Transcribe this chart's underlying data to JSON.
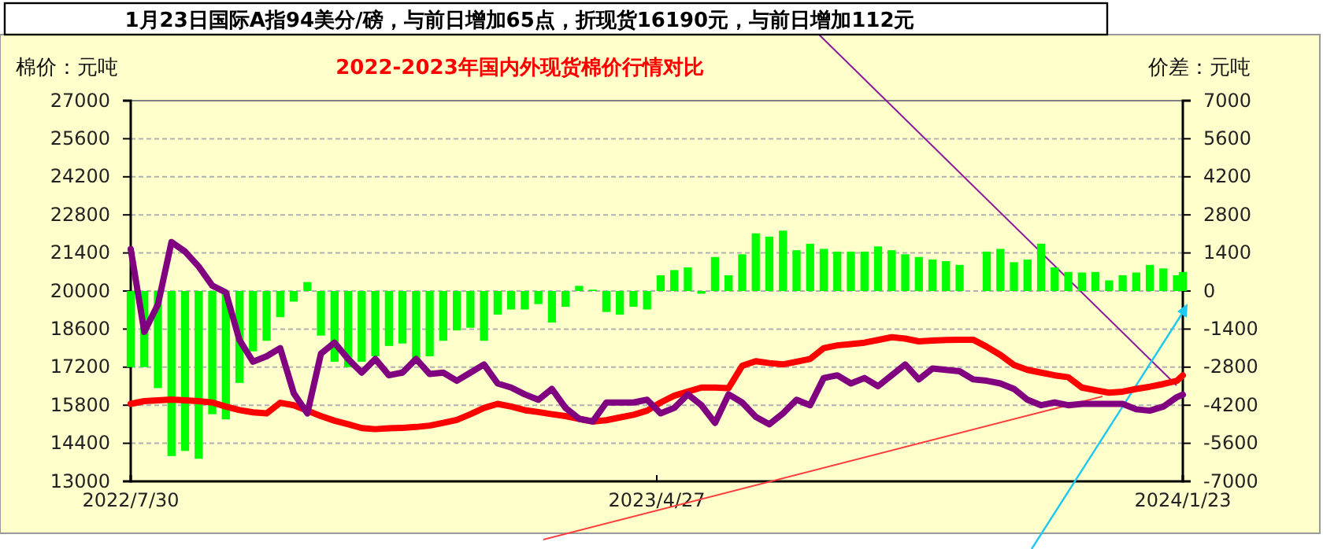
{
  "chart_data": {
    "type": "line",
    "title": "2022-2023年国内外现货棉价行情对比",
    "annotations": [
      "1月23日国际A指94美分/磅，与前日增加65点，折现货16190元，与前日增加112元"
    ],
    "ylabel": "棉价：元吨",
    "y2label": "价差：元吨",
    "x": [
      "2022-07-30",
      "2022-08-06",
      "2022-08-13",
      "2022-08-20",
      "2022-08-27",
      "2022-09-03",
      "2022-09-10",
      "2022-09-17",
      "2022-09-24",
      "2022-10-01",
      "2022-10-08",
      "2022-10-15",
      "2022-10-22",
      "2022-10-29",
      "2022-11-05",
      "2022-11-12",
      "2022-11-19",
      "2022-11-26",
      "2022-12-03",
      "2022-12-10",
      "2022-12-17",
      "2022-12-24",
      "2022-12-31",
      "2023-01-07",
      "2023-01-14",
      "2023-01-21",
      "2023-01-28",
      "2023-02-04",
      "2023-02-11",
      "2023-02-18",
      "2023-02-25",
      "2023-03-04",
      "2023-03-11",
      "2023-03-18",
      "2023-03-25",
      "2023-04-01",
      "2023-04-08",
      "2023-04-15",
      "2023-04-22",
      "2023-04-29",
      "2023-05-06",
      "2023-05-13",
      "2023-05-20",
      "2023-05-27",
      "2023-06-03",
      "2023-06-10",
      "2023-06-17",
      "2023-06-24",
      "2023-07-01",
      "2023-07-08",
      "2023-07-15",
      "2023-07-22",
      "2023-07-29",
      "2023-08-05",
      "2023-08-12",
      "2023-08-19",
      "2023-08-26",
      "2023-09-02",
      "2023-09-09",
      "2023-09-16",
      "2023-09-23",
      "2023-09-30",
      "2023-10-07",
      "2023-10-14",
      "2023-10-21",
      "2023-10-28",
      "2023-11-04",
      "2023-11-11",
      "2023-11-18",
      "2023-11-25",
      "2023-12-02",
      "2023-12-09",
      "2023-12-16",
      "2023-12-23",
      "2023-12-30",
      "2024-01-06",
      "2024-01-13",
      "2024-01-20",
      "2024-01-23"
    ],
    "xlim": [
      "2022-07-30",
      "2024-01-23"
    ],
    "xticks": [
      {
        "value": "2022-07-30",
        "label": "2022/7/30"
      },
      {
        "value": "2023-04-27",
        "label": "2023/4/27"
      },
      {
        "value": "2024-01-23",
        "label": "2024/1/23"
      }
    ],
    "ylim": [
      13000,
      27000
    ],
    "yticks": [
      13000,
      14400,
      15800,
      17200,
      18600,
      20000,
      21400,
      22800,
      24200,
      25600,
      27000
    ],
    "y2lim": [
      -7000,
      7000
    ],
    "y2ticks": [
      -7000,
      -5600,
      -4200,
      -2800,
      -1400,
      0,
      1400,
      2800,
      4200,
      5600,
      7000
    ],
    "grid": "y",
    "series": [
      {
        "type": "bar",
        "axis": "y2",
        "color": "#00ff00",
        "values": [
          -2800,
          -2800,
          -3570,
          -6070,
          -5880,
          -6170,
          -4530,
          -4720,
          -3380,
          -2220,
          -1830,
          -960,
          -390,
          330,
          -1640,
          -2600,
          -2800,
          -2600,
          -2400,
          -2020,
          -1930,
          -2600,
          -2400,
          -1830,
          -1450,
          -1350,
          -1830,
          -870,
          -680,
          -680,
          -480,
          -1160,
          -580,
          190,
          50,
          -770,
          -870,
          -580,
          -680,
          580,
          770,
          870,
          -100,
          1250,
          580,
          1350,
          2120,
          2000,
          2220,
          1500,
          1740,
          1550,
          1450,
          1450,
          1450,
          1640,
          1500,
          1350,
          1250,
          1160,
          1100,
          960,
          null,
          1450,
          1550,
          1060,
          1160,
          1740,
          870,
          700,
          680,
          700,
          390,
          580,
          680,
          960,
          830,
          580,
          700
        ]
      },
      {
        "axis": "y",
        "color": "#ff0000",
        "values": [
          15850,
          15950,
          15980,
          16010,
          15980,
          15950,
          15900,
          15750,
          15620,
          15540,
          15500,
          15890,
          15800,
          15600,
          15400,
          15230,
          15100,
          14960,
          14920,
          14950,
          14970,
          15000,
          15050,
          15150,
          15260,
          15470,
          15700,
          15850,
          15750,
          15620,
          15550,
          15470,
          15400,
          15300,
          15200,
          15250,
          15350,
          15450,
          15600,
          15900,
          16150,
          16300,
          16450,
          16450,
          16430,
          17250,
          17420,
          17350,
          17300,
          17400,
          17500,
          17900,
          18000,
          18050,
          18100,
          18200,
          18300,
          18250,
          18150,
          18180,
          18200,
          18210,
          18210,
          17950,
          17650,
          17280,
          17100,
          17000,
          16900,
          16830,
          16450,
          16350,
          16260,
          16300,
          16400,
          16480,
          16580,
          16700,
          16900
        ]
      },
      {
        "axis": "y",
        "color": "#800080",
        "values": [
          21540,
          18500,
          19500,
          21800,
          21450,
          20900,
          20200,
          19950,
          18200,
          17400,
          17600,
          17900,
          16240,
          15500,
          17700,
          18100,
          17500,
          17000,
          17500,
          16900,
          17000,
          17500,
          16950,
          17000,
          16700,
          17000,
          17300,
          16600,
          16450,
          16200,
          16000,
          16400,
          15700,
          15300,
          15200,
          15900,
          15900,
          15900,
          16000,
          15500,
          15700,
          16200,
          15800,
          15150,
          16200,
          15900,
          15370,
          15100,
          15500,
          16000,
          15800,
          16800,
          16900,
          16600,
          16800,
          16500,
          16900,
          17300,
          16750,
          17150,
          17100,
          17050,
          16750,
          16700,
          16600,
          16400,
          16000,
          15800,
          15900,
          15800,
          15850,
          15850,
          15850,
          15850,
          15650,
          15600,
          15750,
          16100,
          16190
        ]
      }
    ]
  }
}
